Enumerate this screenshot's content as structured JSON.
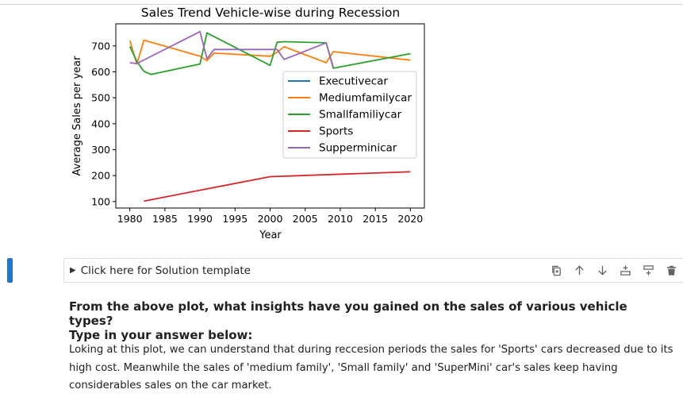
{
  "chart_data": {
    "type": "line",
    "title": "Sales Trend Vehicle-wise during Recession",
    "xlabel": "Year",
    "ylabel": "Average Sales per year",
    "xlim": [
      1978,
      2022
    ],
    "ylim": [
      75,
      785
    ],
    "xticks": [
      1980,
      1985,
      1990,
      1995,
      2000,
      2005,
      2010,
      2015,
      2020
    ],
    "yticks": [
      100,
      200,
      300,
      400,
      500,
      600,
      700
    ],
    "legend_position": "center-right",
    "series": [
      {
        "name": "Executivecar",
        "color": "#1f77b4",
        "x": [],
        "y": []
      },
      {
        "name": "Mediumfamilycar",
        "color": "#ff7f0e",
        "x": [
          1980,
          1981,
          1982,
          1990,
          1991,
          1992,
          2000,
          2001,
          2002,
          2008,
          2009,
          2020
        ],
        "y": [
          720,
          630,
          722,
          660,
          643,
          672,
          660,
          675,
          697,
          635,
          678,
          645
        ]
      },
      {
        "name": "Smallfamiliycar",
        "color": "#2ca02c",
        "x": [
          1980,
          1981,
          1982,
          1983,
          1990,
          1991,
          2000,
          2001,
          2002,
          2008,
          2009,
          2020
        ],
        "y": [
          698,
          640,
          602,
          590,
          630,
          750,
          625,
          714,
          716,
          712,
          614,
          670
        ]
      },
      {
        "name": "Sports",
        "color": "#d62728",
        "x": [
          1982,
          2000,
          2020
        ],
        "y": [
          102,
          196,
          215
        ]
      },
      {
        "name": "Supperminicar",
        "color": "#9467bd",
        "x": [
          1980,
          1981,
          1990,
          1991,
          1992,
          2000,
          2001,
          2002,
          2008,
          2009
        ],
        "y": [
          635,
          632,
          755,
          650,
          686,
          686,
          686,
          648,
          712,
          618
        ]
      }
    ]
  },
  "cell": {
    "summary": "Click here for Solution template",
    "toolbar": [
      "duplicate-icon",
      "arrow-up-icon",
      "arrow-down-icon",
      "insert-above-icon",
      "insert-below-icon",
      "trash-icon"
    ]
  },
  "markdown": {
    "heading_line1": "From the above plot, what insights have you gained on the sales of various vehicle types?",
    "heading_line2": "Type in your answer below:",
    "answer": "Loking at this plot, we can understand that during reccesion periods the sales for 'Sports' cars decreased due to its high cost. Meanwhile the sales of 'medium family', 'Small family' and 'SuperMini' car's sales keep having considerables sales on the car market."
  }
}
